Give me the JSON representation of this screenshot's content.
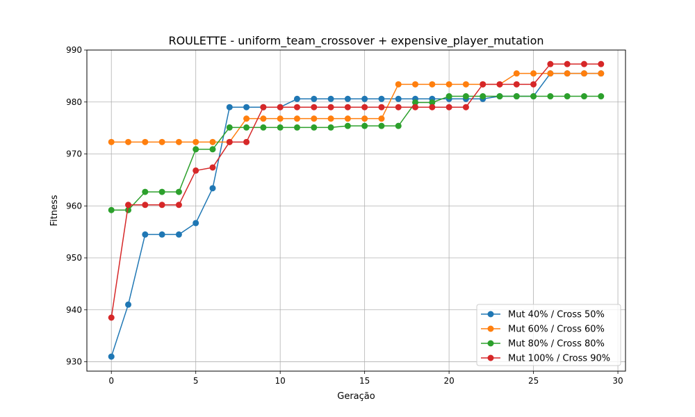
{
  "chart_data": {
    "type": "line",
    "title": "ROULETTE - uniform_team_crossover + expensive_player_mutation",
    "xlabel": "Geração",
    "ylabel": "Fitness",
    "xlim": [
      -1.45,
      30.45
    ],
    "ylim": [
      928.2,
      990
    ],
    "xticks": [
      0,
      5,
      10,
      15,
      20,
      25,
      30
    ],
    "yticks": [
      930,
      940,
      950,
      960,
      970,
      980,
      990
    ],
    "grid": true,
    "legend_position": "lower-right",
    "x": [
      0,
      1,
      2,
      3,
      4,
      5,
      6,
      7,
      8,
      9,
      10,
      11,
      12,
      13,
      14,
      15,
      16,
      17,
      18,
      19,
      20,
      21,
      22,
      23,
      24,
      25,
      26,
      27,
      28,
      29
    ],
    "series": [
      {
        "name": "Mut 40% / Cross 50%",
        "color": "#1f77b4",
        "values": [
          931.0,
          941.0,
          954.5,
          954.5,
          954.5,
          956.7,
          963.4,
          979.0,
          979.0,
          979.0,
          979.0,
          980.6,
          980.6,
          980.6,
          980.6,
          980.6,
          980.6,
          980.6,
          980.6,
          980.6,
          980.6,
          980.6,
          980.6,
          981.1,
          981.1,
          981.1,
          985.5,
          985.5,
          985.5,
          985.5
        ]
      },
      {
        "name": "Mut 60% / Cross 60%",
        "color": "#ff7f0e",
        "values": [
          972.3,
          972.3,
          972.3,
          972.3,
          972.3,
          972.3,
          972.3,
          972.3,
          976.8,
          976.8,
          976.8,
          976.8,
          976.8,
          976.8,
          976.8,
          976.8,
          976.8,
          983.4,
          983.4,
          983.4,
          983.4,
          983.4,
          983.4,
          983.4,
          985.5,
          985.5,
          985.5,
          985.5,
          985.5,
          985.5
        ]
      },
      {
        "name": "Mut 80% / Cross 80%",
        "color": "#2ca02c",
        "values": [
          959.2,
          959.2,
          962.7,
          962.7,
          962.7,
          970.9,
          970.9,
          975.1,
          975.1,
          975.1,
          975.1,
          975.1,
          975.1,
          975.1,
          975.4,
          975.4,
          975.4,
          975.4,
          979.9,
          979.9,
          981.1,
          981.1,
          981.1,
          981.1,
          981.1,
          981.1,
          981.1,
          981.1,
          981.1,
          981.1
        ]
      },
      {
        "name": "Mut 100% / Cross 90%",
        "color": "#d62728",
        "values": [
          938.5,
          960.2,
          960.2,
          960.2,
          960.2,
          966.8,
          967.4,
          972.3,
          972.3,
          979.0,
          979.0,
          979.0,
          979.0,
          979.0,
          979.0,
          979.0,
          979.0,
          979.0,
          979.0,
          979.0,
          979.0,
          979.0,
          983.4,
          983.4,
          983.4,
          983.4,
          987.3,
          987.3,
          987.3,
          987.3
        ]
      }
    ]
  }
}
